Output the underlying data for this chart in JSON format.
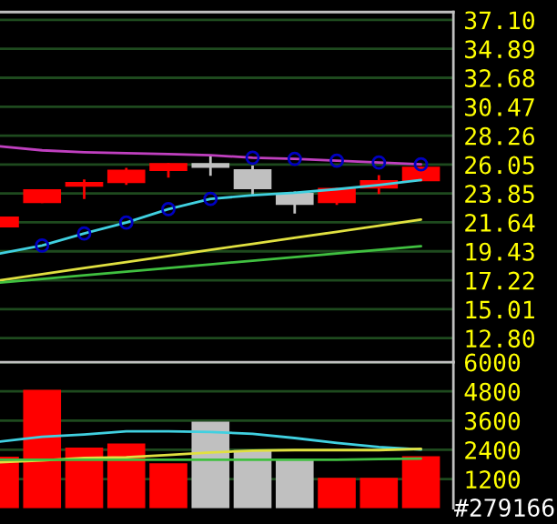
{
  "chart_data": [
    {
      "type": "candlestick",
      "categories": [
        null,
        null,
        null,
        null,
        null,
        null,
        null,
        null,
        null,
        null,
        null
      ],
      "ohlc": [
        [
          21.26,
          22.09,
          21.26,
          22.09
        ],
        [
          23.11,
          24.17,
          23.11,
          24.17
        ],
        [
          24.36,
          24.91,
          23.43,
          24.73
        ],
        [
          24.64,
          25.8,
          24.5,
          25.66
        ],
        [
          25.56,
          26.17,
          25.05,
          26.17
        ],
        [
          26.17,
          26.68,
          25.19,
          25.8
        ],
        [
          25.7,
          25.98,
          23.62,
          24.17
        ],
        [
          23.9,
          23.99,
          22.32,
          22.97
        ],
        [
          23.11,
          24.27,
          22.97,
          24.27
        ],
        [
          24.22,
          25.24,
          23.8,
          24.87
        ],
        [
          24.78,
          25.89,
          24.78,
          25.89
        ]
      ],
      "colors": [
        "#ff0000",
        "#ff0000",
        "#ff0000",
        "#ff0000",
        "#ff0000",
        "#c0c0c0",
        "#c0c0c0",
        "#c0c0c0",
        "#ff0000",
        "#ff0000",
        "#ff0000"
      ],
      "series": [
        {
          "type": "line",
          "color": "#c040c0",
          "values": [
            27.45,
            27.14,
            27.0,
            26.92,
            26.86,
            26.77,
            26.58,
            26.49,
            26.35,
            26.21,
            26.07
          ]
        },
        {
          "type": "line",
          "color": "#40d0e0",
          "values": [
            19.26,
            19.87,
            20.79,
            21.63,
            22.65,
            23.43,
            23.71,
            23.9,
            24.17,
            24.5,
            24.87
          ]
        },
        {
          "type": "line",
          "color": "#e0e040",
          "values": [
            17.22,
            17.68,
            18.15,
            18.61,
            19.07,
            19.54,
            20.0,
            20.46,
            20.92,
            21.39,
            21.85
          ]
        },
        {
          "type": "line",
          "color": "#40c040",
          "values": [
            17.04,
            17.32,
            17.6,
            17.87,
            18.15,
            18.43,
            18.71,
            18.99,
            19.26,
            19.54,
            19.82
          ]
        },
        {
          "type": "scatter",
          "color": "#0000c0",
          "marker": "circle",
          "values": [
            null,
            19.87,
            20.79,
            21.63,
            22.65,
            23.43,
            26.58,
            26.49,
            26.35,
            26.21,
            26.07
          ]
        }
      ],
      "ylim": [
        10.97,
        37.7
      ],
      "yticks": [
        {
          "value": 37.1,
          "label": "37.10"
        },
        34.89,
        32.68,
        30.47,
        28.26,
        26.05,
        23.85,
        21.64,
        19.43,
        17.22,
        15.01,
        {
          "value": 12.8,
          "label": "12.80"
        }
      ],
      "grid": "y",
      "tick_labels": "y"
    },
    {
      "type": "bar",
      "categories": [
        null,
        null,
        null,
        null,
        null,
        null,
        null,
        null,
        null,
        null,
        null
      ],
      "values": [
        2116,
        4862,
        2487,
        2660,
        1844,
        3551,
        2388,
        2042,
        1250,
        1250,
        2140
      ],
      "colors": [
        "#ff0000",
        "#ff0000",
        "#ff0000",
        "#ff0000",
        "#ff0000",
        "#c0c0c0",
        "#c0c0c0",
        "#c0c0c0",
        "#ff0000",
        "#ff0000",
        "#ff0000"
      ],
      "series": [
        {
          "type": "line",
          "color": "#40d0e0",
          "values": [
            2734,
            2932,
            3031,
            3155,
            3155,
            3130,
            3056,
            2883,
            2685,
            2512,
            2413
          ]
        },
        {
          "type": "line",
          "color": "#e0e040",
          "values": [
            1893,
            1967,
            2066,
            2091,
            2190,
            2289,
            2363,
            2388,
            2388,
            2388,
            2437
          ]
        },
        {
          "type": "line",
          "color": "#40c040",
          "values": [
            1992,
            1992,
            1992,
            1992,
            1992,
            1992,
            1992,
            1992,
            1992,
            2017,
            2042
          ]
        }
      ],
      "ylim": [
        0,
        6000
      ],
      "yticks": [
        6000,
        4800,
        3600,
        2400,
        1200
      ],
      "grid": "y",
      "tick_labels": "y",
      "annotations": [
        "#279166"
      ]
    }
  ]
}
